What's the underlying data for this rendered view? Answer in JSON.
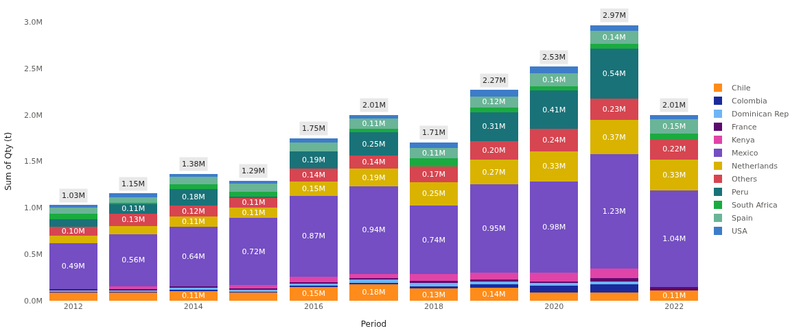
{
  "chart_data": {
    "type": "bar",
    "stacked": true,
    "xlabel": "Period",
    "ylabel": "Sum of Qty (t)",
    "categories": [
      "2012",
      null,
      "2014",
      null,
      "2016",
      null,
      "2018",
      null,
      "2020",
      null,
      "2022"
    ],
    "ylim": [
      0,
      3
    ],
    "yticks": [
      {
        "value": 0,
        "label": "0.0M"
      },
      {
        "value": 0.5,
        "label": "0.5M"
      },
      {
        "value": 1,
        "label": "1.0M"
      },
      {
        "value": 1.5,
        "label": "1.5M"
      },
      {
        "value": 2,
        "label": "2.0M"
      },
      {
        "value": 2.5,
        "label": "2.5M"
      },
      {
        "value": 3,
        "label": "3.0M"
      }
    ],
    "legend": "right",
    "totals": [
      "1.03M",
      "1.15M",
      "1.38M",
      "1.29M",
      "1.75M",
      "2.01M",
      "1.71M",
      "2.27M",
      "2.53M",
      "2.97M",
      "2.01M"
    ],
    "series": [
      {
        "name": "Chile",
        "color": "#ff8c1a",
        "values": [
          0.09,
          0.09,
          0.11,
          0.09,
          0.15,
          0.18,
          0.13,
          0.14,
          0.09,
          0.09,
          0.11
        ],
        "value_labels": [
          null,
          null,
          "0.11M",
          null,
          "0.15M",
          "0.18M",
          "0.13M",
          "0.14M",
          null,
          null,
          "0.11M"
        ]
      },
      {
        "name": "Colombia",
        "color": "#1a2a9c",
        "values": [
          0.005,
          0.005,
          0.005,
          0.005,
          0.01,
          0.01,
          0.025,
          0.04,
          0.07,
          0.09,
          0
        ]
      },
      {
        "name": "Dominican Rep",
        "color": "#6fb5f5",
        "values": [
          0.016,
          0.02,
          0.025,
          0.02,
          0.03,
          0.035,
          0.04,
          0.03,
          0.03,
          0.03,
          0
        ]
      },
      {
        "name": "France",
        "color": "#5c0a6e",
        "values": [
          0.018,
          0.01,
          0.015,
          0.015,
          0.01,
          0.015,
          0.02,
          0.02,
          0.02,
          0.035,
          0.04
        ]
      },
      {
        "name": "Kenya",
        "color": "#e044a7",
        "values": [
          0,
          0.03,
          0,
          0.04,
          0.06,
          0.05,
          0.07,
          0.07,
          0.09,
          0.1,
          0
        ]
      },
      {
        "name": "Mexico",
        "color": "#744ec2",
        "values": [
          0.49,
          0.56,
          0.64,
          0.72,
          0.87,
          0.94,
          0.74,
          0.95,
          0.98,
          1.23,
          1.04
        ],
        "value_labels": [
          "0.49M",
          "0.56M",
          "0.64M",
          "0.72M",
          "0.87M",
          "0.94M",
          "0.74M",
          "0.95M",
          "0.98M",
          "1.23M",
          "1.04M"
        ]
      },
      {
        "name": "Netherlands",
        "color": "#d9b300",
        "values": [
          0.08,
          0.09,
          0.11,
          0.11,
          0.15,
          0.19,
          0.25,
          0.27,
          0.33,
          0.37,
          0.33
        ],
        "value_labels": [
          null,
          null,
          "0.11M",
          "0.11M",
          "0.15M",
          "0.19M",
          "0.25M",
          "0.27M",
          "0.33M",
          "0.37M",
          "0.33M"
        ]
      },
      {
        "name": "Others",
        "color": "#d64550",
        "values": [
          0.1,
          0.13,
          0.12,
          0.11,
          0.14,
          0.14,
          0.17,
          0.2,
          0.24,
          0.23,
          0.22
        ],
        "value_labels": [
          "0.10M",
          "0.13M",
          "0.12M",
          "0.11M",
          "0.14M",
          "0.14M",
          "0.17M",
          "0.20M",
          "0.24M",
          "0.23M",
          "0.22M"
        ]
      },
      {
        "name": "Peru",
        "color": "#197278",
        "values": [
          0.08,
          0.11,
          0.18,
          0.01,
          0.19,
          0.25,
          0,
          0.31,
          0.41,
          0.54,
          0
        ],
        "value_labels": [
          null,
          "0.11M",
          "0.18M",
          null,
          "0.19M",
          "0.25M",
          null,
          "0.31M",
          "0.41M",
          "0.54M",
          null
        ]
      },
      {
        "name": "South Africa",
        "color": "#1aab40",
        "values": [
          0.06,
          0.01,
          0.05,
          0.05,
          0,
          0.04,
          0.09,
          0.05,
          0.05,
          0.05,
          0.06
        ]
      },
      {
        "name": "Spain",
        "color": "#6ab497",
        "values": [
          0.06,
          0.06,
          0.08,
          0.09,
          0.09,
          0.11,
          0.11,
          0.12,
          0.14,
          0.14,
          0.15
        ],
        "value_labels": [
          null,
          null,
          null,
          null,
          null,
          "0.11M",
          "0.11M",
          "0.12M",
          "0.14M",
          "0.14M",
          "0.15M"
        ]
      },
      {
        "name": "USA",
        "color": "#3d7cc9",
        "values": [
          0.03,
          0.04,
          0.03,
          0.03,
          0.05,
          0.04,
          0.06,
          0.07,
          0.07,
          0.06,
          0.05
        ]
      }
    ]
  }
}
